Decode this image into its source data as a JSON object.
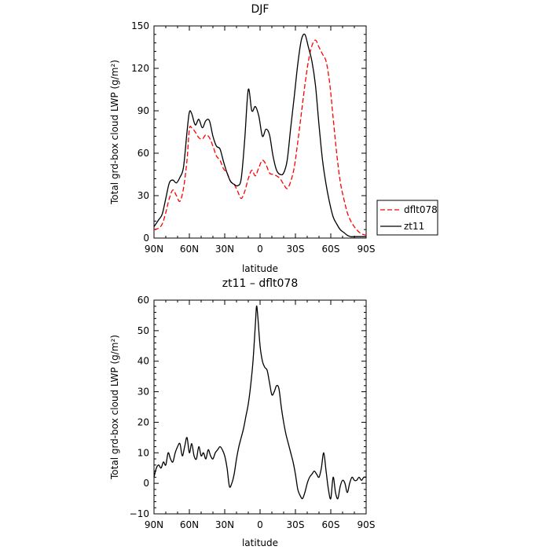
{
  "chart_data": [
    {
      "type": "line",
      "title": "DJF",
      "xlabel": "latitude",
      "ylabel": "Total grd-box cloud LWP (g/m²)",
      "xlim": [
        90,
        -90
      ],
      "ylim": [
        0,
        150
      ],
      "x_ticks": [
        90,
        60,
        30,
        0,
        -30,
        -60,
        -90
      ],
      "x_tick_labels": [
        "90N",
        "60N",
        "30N",
        "0",
        "30S",
        "60S",
        "90S"
      ],
      "y_ticks": [
        0,
        30,
        60,
        90,
        120,
        150
      ],
      "y_tick_labels": [
        "0",
        "30",
        "60",
        "90",
        "120",
        "150"
      ],
      "legend": "right",
      "series": [
        {
          "name": "dflt078",
          "color": "#ff0000",
          "dash": "dashed",
          "x": [
            90,
            86,
            83,
            80,
            77,
            74,
            71,
            68,
            65,
            62,
            60,
            58,
            55,
            52,
            49,
            46,
            43,
            40,
            37,
            34,
            31,
            28,
            25,
            22,
            19,
            16,
            13,
            10,
            7,
            4,
            1,
            -2,
            -5,
            -8,
            -11,
            -14,
            -17,
            -20,
            -23,
            -26,
            -29,
            -32,
            -35,
            -38,
            -41,
            -44,
            -47,
            -50,
            -53,
            -56,
            -59,
            -62,
            -65,
            -68,
            -71,
            -74,
            -77,
            -80,
            -83,
            -86,
            -90
          ],
          "values": [
            6,
            7,
            10,
            18,
            28,
            34,
            30,
            26,
            35,
            55,
            77,
            78,
            75,
            71,
            70,
            73,
            71,
            65,
            58,
            55,
            49,
            46,
            40,
            38,
            33,
            28,
            33,
            42,
            48,
            44,
            50,
            55,
            52,
            46,
            45,
            44,
            42,
            38,
            35,
            40,
            50,
            68,
            88,
            108,
            125,
            136,
            140,
            135,
            130,
            125,
            110,
            85,
            60,
            40,
            28,
            18,
            12,
            8,
            5,
            3,
            2
          ]
        },
        {
          "name": "zt11",
          "color": "#000000",
          "dash": "solid",
          "x": [
            90,
            86,
            83,
            80,
            77,
            74,
            71,
            68,
            65,
            62,
            60,
            58,
            55,
            52,
            49,
            46,
            43,
            40,
            37,
            34,
            31,
            28,
            25,
            22,
            19,
            16,
            13,
            10,
            7,
            4,
            1,
            -2,
            -5,
            -8,
            -11,
            -14,
            -17,
            -20,
            -23,
            -26,
            -29,
            -32,
            -35,
            -38,
            -41,
            -44,
            -47,
            -50,
            -53,
            -56,
            -59,
            -62,
            -65,
            -68,
            -71,
            -74,
            -77,
            -80,
            -83,
            -86,
            -90
          ],
          "values": [
            8,
            13,
            17,
            28,
            39,
            41,
            39,
            43,
            50,
            75,
            89,
            88,
            80,
            84,
            78,
            83,
            83,
            72,
            65,
            63,
            54,
            46,
            40,
            38,
            37,
            42,
            70,
            105,
            90,
            93,
            86,
            72,
            77,
            73,
            58,
            48,
            45,
            46,
            55,
            78,
            100,
            123,
            140,
            144,
            135,
            125,
            108,
            80,
            55,
            38,
            25,
            15,
            10,
            6,
            4,
            2,
            1,
            1,
            1,
            1,
            1
          ]
        }
      ]
    },
    {
      "type": "line",
      "title": "zt11 – dflt078",
      "xlabel": "latitude",
      "ylabel": "Total grd-box cloud LWP (g/m²)",
      "xlim": [
        90,
        -90
      ],
      "ylim": [
        -10,
        60
      ],
      "x_ticks": [
        90,
        60,
        30,
        0,
        -30,
        -60,
        -90
      ],
      "x_tick_labels": [
        "90N",
        "60N",
        "30N",
        "0",
        "30S",
        "60S",
        "90S"
      ],
      "y_ticks": [
        -10,
        0,
        10,
        20,
        30,
        40,
        50,
        60
      ],
      "y_tick_labels": [
        "−10",
        "0",
        "10",
        "20",
        "30",
        "40",
        "50",
        "60"
      ],
      "series": [
        {
          "color": "#000000",
          "dash": "solid",
          "x": [
            90,
            88,
            86,
            84,
            82,
            80,
            78,
            76,
            74,
            72,
            70,
            68,
            66,
            64,
            62,
            60,
            58,
            56,
            54,
            52,
            50,
            48,
            46,
            44,
            42,
            40,
            38,
            36,
            34,
            32,
            30,
            28,
            26,
            24,
            22,
            20,
            18,
            16,
            14,
            12,
            10,
            8,
            6,
            4,
            3,
            2,
            0,
            -2,
            -4,
            -6,
            -8,
            -10,
            -12,
            -14,
            -16,
            -18,
            -20,
            -22,
            -24,
            -26,
            -28,
            -30,
            -32,
            -34,
            -36,
            -38,
            -40,
            -42,
            -44,
            -46,
            -48,
            -50,
            -52,
            -54,
            -56,
            -58,
            -60,
            -62,
            -64,
            -66,
            -68,
            -70,
            -72,
            -74,
            -76,
            -78,
            -80,
            -82,
            -84,
            -86,
            -88,
            -90
          ],
          "values": [
            2,
            5,
            6,
            5,
            7,
            6,
            10,
            8,
            7,
            10,
            12,
            13,
            9,
            12,
            15,
            10,
            13,
            9,
            8,
            12,
            9,
            10,
            8,
            11,
            9,
            8,
            10,
            11,
            12,
            11,
            9,
            5,
            -1,
            0,
            3,
            8,
            12,
            15,
            18,
            22,
            26,
            32,
            40,
            52,
            58,
            55,
            45,
            40,
            38,
            37,
            33,
            29,
            30,
            32,
            31,
            25,
            20,
            16,
            13,
            10,
            7,
            3,
            -2,
            -4,
            -5,
            -3,
            0,
            2,
            3,
            4,
            3,
            2,
            5,
            10,
            4,
            -2,
            -5,
            2,
            -3,
            -5,
            -1,
            1,
            0,
            -3,
            0,
            2,
            1,
            1,
            2,
            1,
            2,
            2
          ]
        }
      ]
    }
  ]
}
